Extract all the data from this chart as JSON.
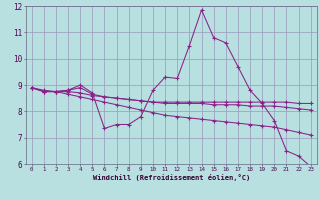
{
  "xlabel": "Windchill (Refroidissement éolien,°C)",
  "xlim": [
    -0.5,
    23.5
  ],
  "ylim": [
    6,
    12
  ],
  "xticks": [
    0,
    1,
    2,
    3,
    4,
    5,
    6,
    7,
    8,
    9,
    10,
    11,
    12,
    13,
    14,
    15,
    16,
    17,
    18,
    19,
    20,
    21,
    22,
    23
  ],
  "yticks": [
    6,
    7,
    8,
    9,
    10,
    11,
    12
  ],
  "background_color": "#b8e0e0",
  "grid_color": "#9999bb",
  "line_color": "#882288",
  "series": [
    [
      8.9,
      8.75,
      8.75,
      8.8,
      9.0,
      8.7,
      7.35,
      7.5,
      7.5,
      7.8,
      8.8,
      9.3,
      9.25,
      10.5,
      11.85,
      10.8,
      10.6,
      9.7,
      8.8,
      8.3,
      7.65,
      6.5,
      6.3,
      5.9
    ],
    [
      8.9,
      8.75,
      8.75,
      8.8,
      8.9,
      8.65,
      8.55,
      8.5,
      8.45,
      8.4,
      8.35,
      8.35,
      8.35,
      8.35,
      8.35,
      8.35,
      8.35,
      8.35,
      8.35,
      8.35,
      8.35,
      8.35,
      8.3,
      8.3
    ],
    [
      8.9,
      8.75,
      8.75,
      8.75,
      8.7,
      8.6,
      8.55,
      8.5,
      8.45,
      8.4,
      8.35,
      8.3,
      8.3,
      8.3,
      8.3,
      8.25,
      8.25,
      8.25,
      8.2,
      8.2,
      8.2,
      8.15,
      8.1,
      8.05
    ],
    [
      8.9,
      8.8,
      8.75,
      8.65,
      8.55,
      8.45,
      8.35,
      8.25,
      8.15,
      8.05,
      7.95,
      7.85,
      7.8,
      7.75,
      7.7,
      7.65,
      7.6,
      7.55,
      7.5,
      7.45,
      7.4,
      7.3,
      7.2,
      7.1
    ]
  ]
}
